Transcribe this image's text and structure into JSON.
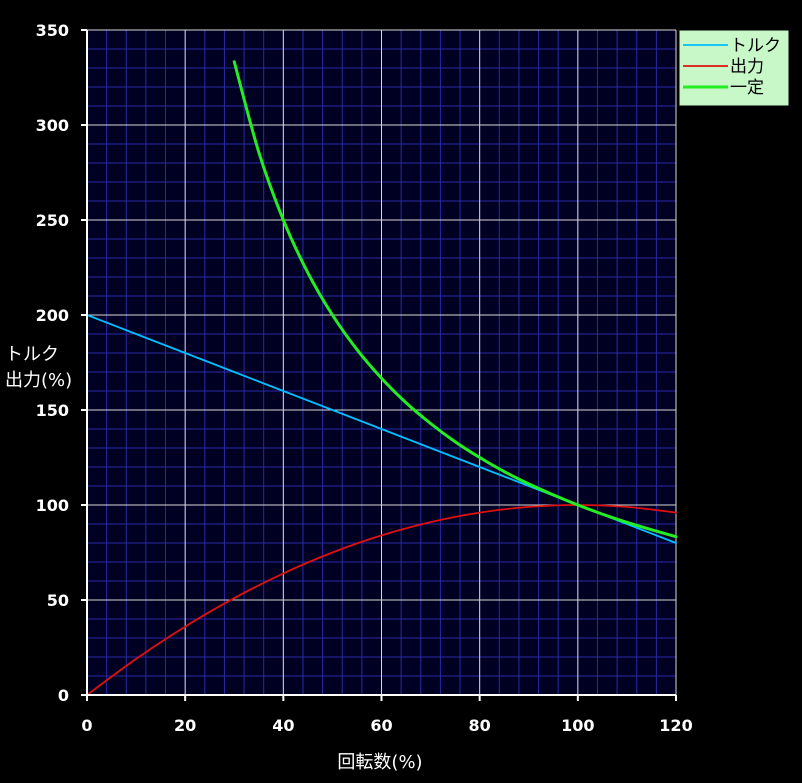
{
  "chart_data": {
    "type": "line",
    "xlabel": "回転数(%)",
    "ylabel_lines": [
      "トルク",
      "出力(%)"
    ],
    "xlim": [
      0,
      120
    ],
    "ylim": [
      0,
      350
    ],
    "x_ticks": [
      0,
      20,
      40,
      60,
      80,
      100,
      120
    ],
    "y_ticks": [
      0,
      50,
      100,
      150,
      200,
      250,
      300,
      350
    ],
    "x_minor_step": 4,
    "y_minor_step": 10,
    "grid": true,
    "legend_position": "top-right",
    "series": [
      {
        "name": "トルク",
        "color": "#00BFFF",
        "x": [
          0,
          10,
          20,
          30,
          40,
          50,
          60,
          70,
          80,
          90,
          100,
          110,
          120
        ],
        "y": [
          200,
          190,
          180,
          170,
          160,
          150,
          140,
          130,
          120,
          110,
          100,
          90,
          80
        ]
      },
      {
        "name": "出力",
        "color": "#E01010",
        "x": [
          0,
          10,
          20,
          30,
          40,
          50,
          60,
          70,
          80,
          90,
          100,
          110,
          120
        ],
        "y": [
          0,
          19,
          36,
          51,
          64,
          75,
          84,
          91,
          96,
          99,
          100,
          99,
          96
        ]
      },
      {
        "name": "一定",
        "color": "#22EE22",
        "x": [
          30,
          35,
          40,
          45,
          50,
          55,
          60,
          65,
          70,
          75,
          80,
          85,
          90,
          95,
          100,
          105,
          110,
          115,
          120
        ],
        "y": [
          333.3,
          285.7,
          250,
          222.2,
          200,
          181.8,
          166.7,
          153.8,
          142.9,
          133.3,
          125,
          117.6,
          111.1,
          105.3,
          100,
          95.2,
          90.9,
          87,
          83.3
        ]
      }
    ]
  }
}
